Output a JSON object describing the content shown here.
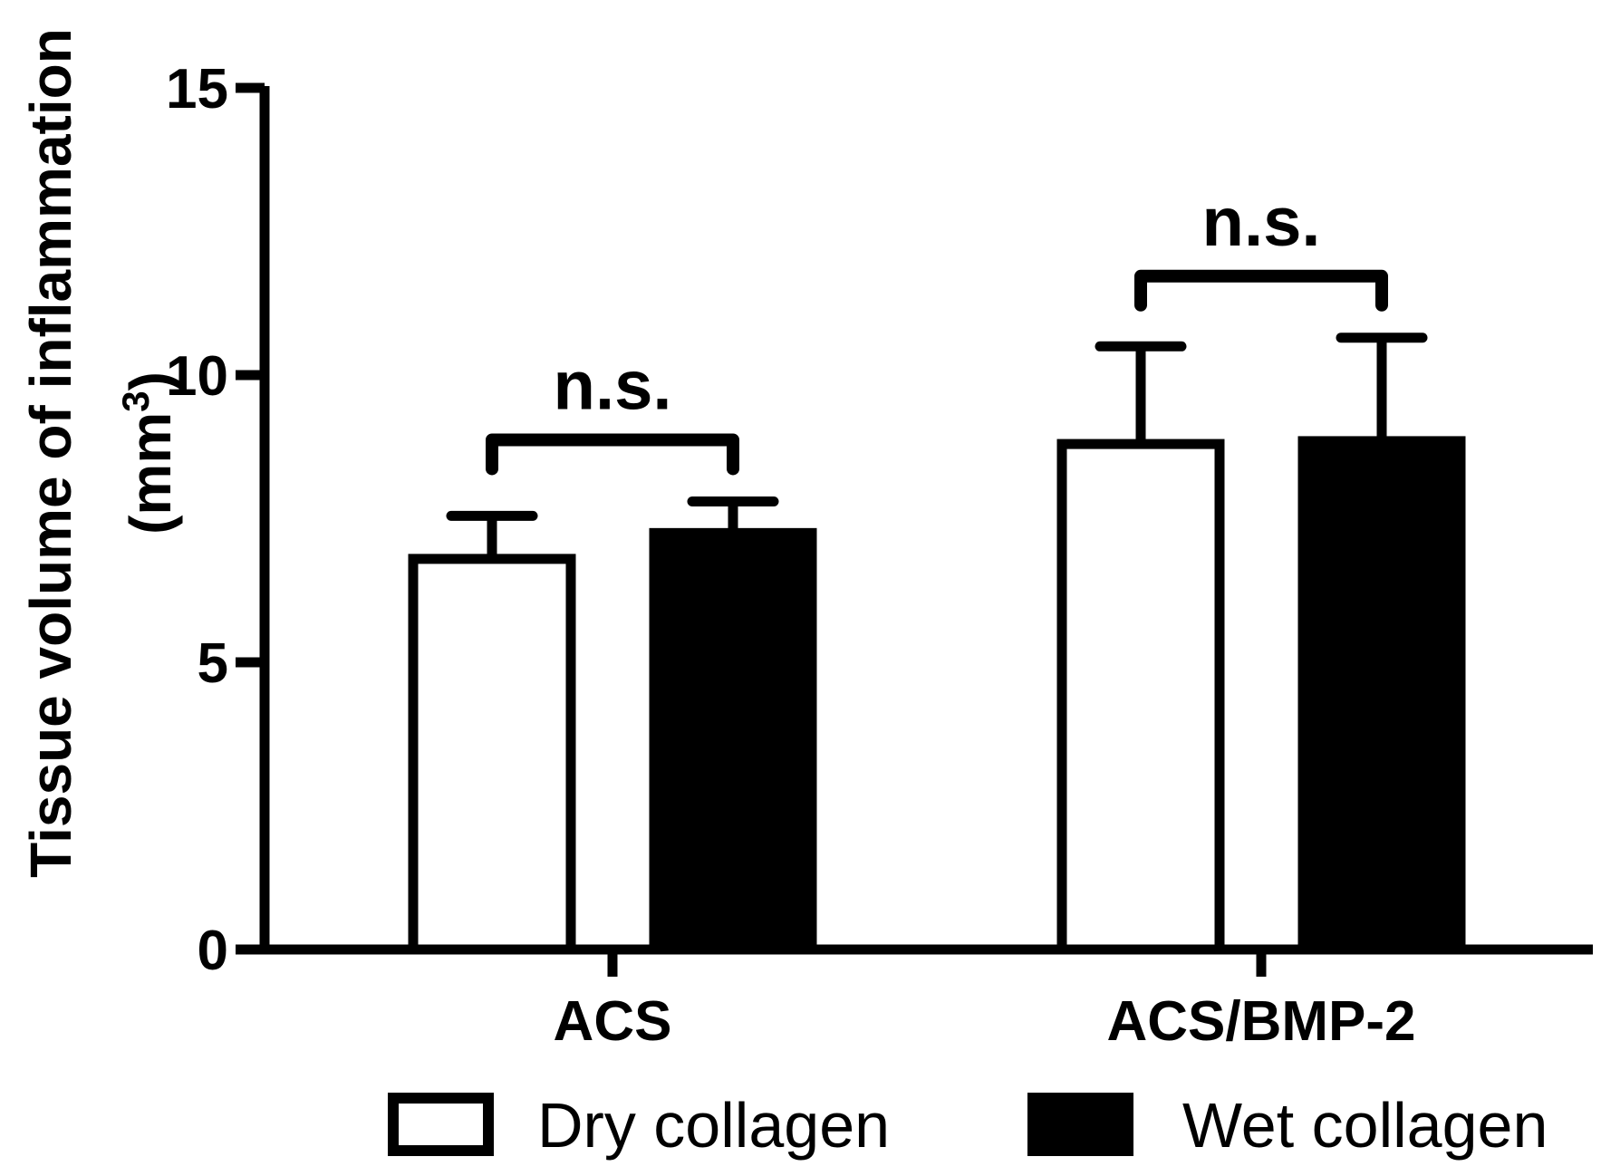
{
  "chart_data": {
    "type": "bar",
    "categories": [
      "ACS",
      "ACS/BMP-2"
    ],
    "series": [
      {
        "name": "Dry collagen",
        "values": [
          6.8,
          8.8
        ],
        "errors": [
          0.75,
          1.7
        ],
        "fill": "#ffffff"
      },
      {
        "name": "Wet collagen",
        "values": [
          7.25,
          8.85
        ],
        "errors": [
          0.55,
          1.8
        ],
        "fill": "#000000"
      }
    ],
    "ylabel_line1": "Tissue volume of inflammation",
    "ylabel_line2_main": "(mm",
    "ylabel_line2_sup": "3",
    "ylabel_line2_end": ")",
    "ylim": [
      0,
      15
    ],
    "yticks": [
      0,
      5,
      10,
      15
    ],
    "significance": [
      {
        "category": "ACS",
        "label": "n.s."
      },
      {
        "category": "ACS/BMP-2",
        "label": "n.s."
      }
    ],
    "legend_position": "bottom",
    "colors": {
      "axis": "#000000",
      "dry": "#ffffff",
      "wet": "#000000"
    }
  }
}
